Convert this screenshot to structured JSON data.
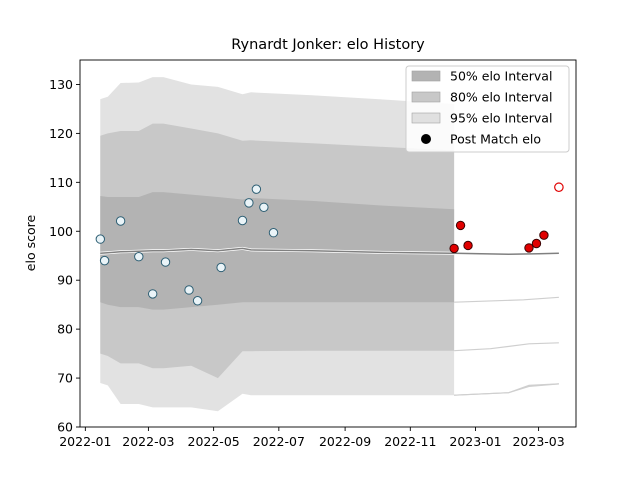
{
  "chart_data": {
    "type": "scatter",
    "title": "Rynardt Jonker: elo History",
    "xlabel": "",
    "ylabel": "elo score",
    "xlim": [
      "2021-12-27",
      "2023-04-05"
    ],
    "ylim": [
      60,
      135
    ],
    "yticks": [
      60,
      70,
      80,
      90,
      100,
      110,
      120,
      130
    ],
    "xticks": [
      {
        "date": "2022-01-01",
        "label": "2022-01"
      },
      {
        "date": "2022-03-01",
        "label": "2022-03"
      },
      {
        "date": "2022-05-01",
        "label": "2022-05"
      },
      {
        "date": "2022-07-01",
        "label": "2022-07"
      },
      {
        "date": "2022-09-01",
        "label": "2022-09"
      },
      {
        "date": "2022-11-01",
        "label": "2022-11"
      },
      {
        "date": "2023-01-01",
        "label": "2023-01"
      },
      {
        "date": "2023-03-01",
        "label": "2023-03"
      }
    ],
    "grid": false,
    "legend": {
      "placement": "top-right",
      "entries": [
        {
          "label": "50% elo Interval",
          "color": "#b3b3b3",
          "kind": "patch"
        },
        {
          "label": "80% elo Interval",
          "color": "#c8c8c8",
          "kind": "patch"
        },
        {
          "label": "95% elo Interval",
          "color": "#e0e0e0",
          "kind": "patch"
        },
        {
          "label": "Post Match elo",
          "color": "#000000",
          "kind": "marker"
        }
      ]
    },
    "colors": {
      "band50": "#b3b3b3",
      "band80": "#c8c8c8",
      "band95": "#e2e2e2",
      "mean_line": "#808080",
      "history_point_fill": "#eaf4f8",
      "history_point_edge": "#2e5f74",
      "recent_point_fill": "#e00000",
      "recent_point_edge": "#3a0000",
      "future_point_edge": "#e00000"
    },
    "bands_history": [
      {
        "x": "2022-01-15",
        "mean": 95.5,
        "lo50": 85.5,
        "hi50": 107.2,
        "lo80": 75.0,
        "hi80": 119.5,
        "lo95": 69.0,
        "hi95": 127.0
      },
      {
        "x": "2022-01-22",
        "mean": 95.6,
        "lo50": 85.0,
        "hi50": 107.0,
        "lo80": 74.5,
        "hi80": 120.0,
        "lo95": 68.5,
        "hi95": 127.5
      },
      {
        "x": "2022-02-03",
        "mean": 95.8,
        "lo50": 84.5,
        "hi50": 107.0,
        "lo80": 73.0,
        "hi80": 120.5,
        "lo95": 64.7,
        "hi95": 130.3
      },
      {
        "x": "2022-02-20",
        "mean": 95.9,
        "lo50": 84.5,
        "hi50": 107.0,
        "lo80": 73.0,
        "hi80": 120.5,
        "lo95": 64.7,
        "hi95": 130.4
      },
      {
        "x": "2022-03-05",
        "mean": 96.0,
        "lo50": 84.0,
        "hi50": 108.0,
        "lo80": 72.0,
        "hi80": 122.0,
        "lo95": 64.0,
        "hi95": 131.5
      },
      {
        "x": "2022-03-15",
        "mean": 96.0,
        "lo50": 84.0,
        "hi50": 108.0,
        "lo80": 72.0,
        "hi80": 122.0,
        "lo95": 64.0,
        "hi95": 131.5
      },
      {
        "x": "2022-04-10",
        "mean": 96.3,
        "lo50": 84.5,
        "hi50": 107.5,
        "lo80": 72.5,
        "hi80": 121.0,
        "lo95": 64.0,
        "hi95": 130.0
      },
      {
        "x": "2022-05-05",
        "mean": 96.0,
        "lo50": 85.0,
        "hi50": 107.0,
        "lo80": 70.0,
        "hi80": 120.0,
        "lo95": 63.2,
        "hi95": 129.5
      },
      {
        "x": "2022-05-28",
        "mean": 96.5,
        "lo50": 85.5,
        "hi50": 106.5,
        "lo80": 75.5,
        "hi80": 118.5,
        "lo95": 66.8,
        "hi95": 128.0
      },
      {
        "x": "2022-06-05",
        "mean": 96.2,
        "lo50": 85.5,
        "hi50": 106.8,
        "lo80": 75.5,
        "hi80": 118.6,
        "lo95": 66.5,
        "hi95": 128.4
      },
      {
        "x": "2022-08-01",
        "mean": 96.0,
        "lo50": 85.5,
        "hi50": 106.2,
        "lo80": 75.6,
        "hi80": 118.0,
        "lo95": 66.5,
        "hi95": 127.8
      },
      {
        "x": "2022-10-01",
        "mean": 95.7,
        "lo50": 85.5,
        "hi50": 105.3,
        "lo80": 75.6,
        "hi80": 117.3,
        "lo95": 66.5,
        "hi95": 127.0
      },
      {
        "x": "2022-12-12",
        "mean": 95.5,
        "lo50": 85.5,
        "hi50": 104.5,
        "lo80": 75.6,
        "hi80": 116.5,
        "lo95": 66.5,
        "hi95": 126.0
      }
    ],
    "future_mean": [
      {
        "x": "2022-12-12",
        "y": 95.5
      },
      {
        "x": "2023-02-01",
        "y": 95.3
      },
      {
        "x": "2023-03-01",
        "y": 95.4
      },
      {
        "x": "2023-03-20",
        "y": 95.5
      }
    ],
    "future_outline": [
      [
        {
          "x": "2022-12-12",
          "y": 85.5
        },
        {
          "x": "2023-02-15",
          "y": 86.0
        },
        {
          "x": "2023-03-20",
          "y": 86.5
        }
      ],
      [
        {
          "x": "2022-12-12",
          "y": 75.6
        },
        {
          "x": "2023-01-15",
          "y": 76.0
        },
        {
          "x": "2023-02-20",
          "y": 77.0
        },
        {
          "x": "2023-03-20",
          "y": 77.2
        }
      ],
      [
        {
          "x": "2022-12-12",
          "y": 66.5
        },
        {
          "x": "2023-02-01",
          "y": 67.0
        },
        {
          "x": "2023-02-20",
          "y": 68.3
        },
        {
          "x": "2023-03-20",
          "y": 68.8
        }
      ],
      [
        {
          "x": "2022-12-12",
          "y": 66.5
        },
        {
          "x": "2023-02-01",
          "y": 67.0
        },
        {
          "x": "2023-02-20",
          "y": 68.5
        },
        {
          "x": "2023-03-20",
          "y": 68.8
        }
      ]
    ],
    "history_points": [
      {
        "x": "2022-01-15",
        "y": 98.4
      },
      {
        "x": "2022-01-19",
        "y": 94.0
      },
      {
        "x": "2022-02-03",
        "y": 102.1
      },
      {
        "x": "2022-02-20",
        "y": 94.8
      },
      {
        "x": "2022-03-05",
        "y": 87.2
      },
      {
        "x": "2022-03-17",
        "y": 93.7
      },
      {
        "x": "2022-04-08",
        "y": 88.0
      },
      {
        "x": "2022-04-16",
        "y": 85.8
      },
      {
        "x": "2022-05-08",
        "y": 92.6
      },
      {
        "x": "2022-05-28",
        "y": 102.2
      },
      {
        "x": "2022-06-03",
        "y": 105.8
      },
      {
        "x": "2022-06-10",
        "y": 108.6
      },
      {
        "x": "2022-06-17",
        "y": 104.9
      },
      {
        "x": "2022-06-26",
        "y": 99.7
      }
    ],
    "recent_points": [
      {
        "x": "2022-12-12",
        "y": 96.5
      },
      {
        "x": "2022-12-18",
        "y": 101.2
      },
      {
        "x": "2022-12-25",
        "y": 97.1
      },
      {
        "x": "2023-02-20",
        "y": 96.6
      },
      {
        "x": "2023-02-27",
        "y": 97.5
      },
      {
        "x": "2023-03-06",
        "y": 99.2
      }
    ],
    "future_point": {
      "x": "2023-03-20",
      "y": 109.0
    }
  }
}
